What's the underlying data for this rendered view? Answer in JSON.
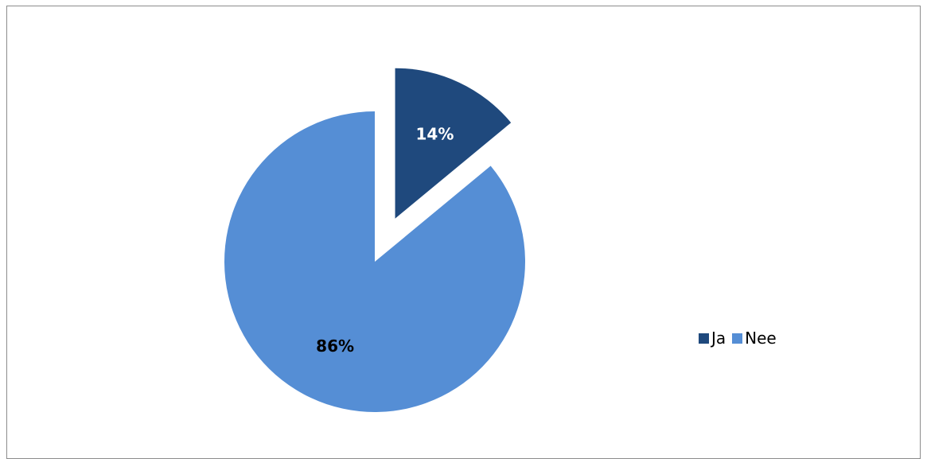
{
  "chart_data": {
    "type": "pie",
    "title": "",
    "categories": [
      "Ja",
      "Nee"
    ],
    "values": [
      14,
      86
    ],
    "labels": [
      "14%",
      "86%"
    ],
    "colors": [
      "#1f497d",
      "#558ed5"
    ],
    "label_colors": [
      "#ffffff",
      "#000000"
    ],
    "exploded": [
      true,
      false
    ],
    "start_angle_deg": 0,
    "direction": "clockwise",
    "legend_position": "right"
  }
}
